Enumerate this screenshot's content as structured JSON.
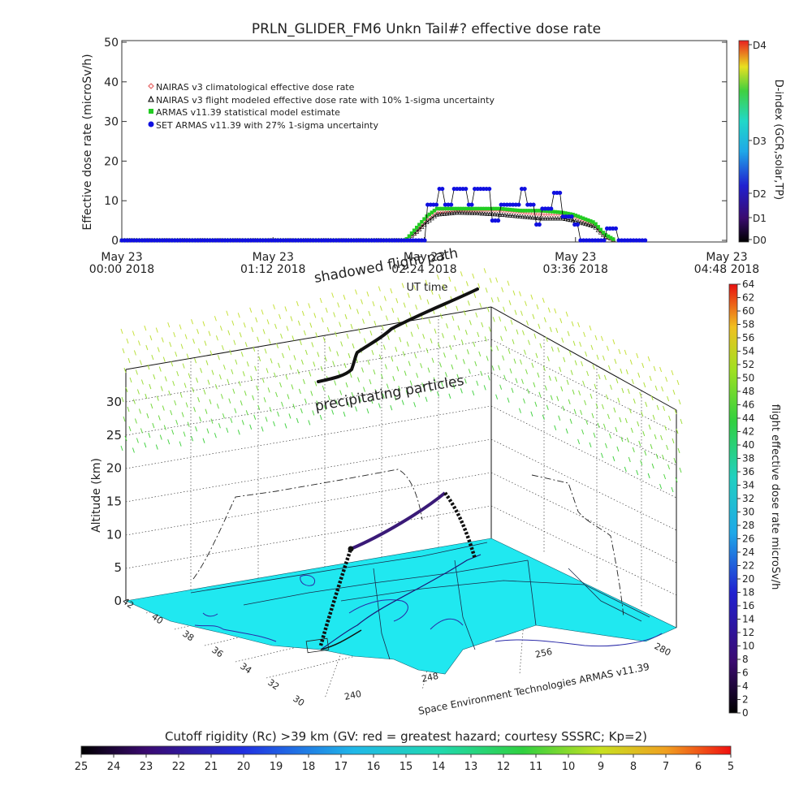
{
  "chart_data": [
    {
      "type": "line",
      "title": "PRLN_GLIDER_FM6 Unkn Tail#? effective dose rate",
      "xlabel": "UT time",
      "ylabel": "Effective dose rate (microSv/h)",
      "ylim": [
        0,
        50
      ],
      "yticks": [
        "0",
        "10",
        "20",
        "30",
        "40",
        "50"
      ],
      "xlim_minutes": [
        0,
        288
      ],
      "xticks": [
        {
          "minute": 0,
          "line1": "May 23",
          "line2": "00:00 2018"
        },
        {
          "minute": 72,
          "line1": "May 23",
          "line2": "01:12 2018"
        },
        {
          "minute": 144,
          "line1": "May 23",
          "line2": "02:24 2018"
        },
        {
          "minute": 216,
          "line1": "May 23",
          "line2": "03:36 2018"
        },
        {
          "minute": 288,
          "line1": "May 23",
          "line2": "04:48 2018"
        }
      ],
      "legend_position": "top-left",
      "series": [
        {
          "name": "NAIRAS v3 climatological effective dose rate",
          "color": "#e87070",
          "marker": "diamond",
          "x": [
            0,
            135,
            140,
            145,
            150,
            160,
            170,
            180,
            190,
            200,
            210,
            215,
            225,
            230,
            235
          ],
          "y": [
            0,
            0,
            2,
            5,
            7,
            7.5,
            7.5,
            7.5,
            7,
            6.5,
            6.5,
            6,
            4,
            1,
            0
          ]
        },
        {
          "name": "NAIRAS v3 flight modeled effective dose rate with 10% 1-sigma uncertainty",
          "color": "#000000",
          "marker": "triangle",
          "x": [
            0,
            135,
            140,
            145,
            150,
            160,
            170,
            180,
            190,
            200,
            210,
            215,
            225,
            230,
            235
          ],
          "y": [
            0,
            0,
            2,
            4.5,
            6.5,
            7,
            6.8,
            6.5,
            6,
            5.5,
            5.5,
            5,
            3.5,
            1,
            0
          ]
        },
        {
          "name": "ARMAS v11.39 statistical model estimate",
          "color": "#22cc22",
          "marker": "square",
          "x": [
            0,
            135,
            140,
            145,
            150,
            160,
            170,
            180,
            190,
            200,
            210,
            215,
            225,
            230,
            235
          ],
          "y": [
            0,
            0,
            3,
            6,
            8,
            8,
            8,
            8,
            7.5,
            7.5,
            7,
            6.5,
            4.5,
            1.5,
            0
          ]
        },
        {
          "name": "SET ARMAS v11.39 with 27% 1-sigma uncertainty",
          "color": "#1010e0",
          "marker": "circle",
          "x": [
            0,
            140,
            145,
            148,
            150,
            153,
            158,
            162,
            165,
            168,
            172,
            176,
            180,
            185,
            190,
            193,
            197,
            200,
            205,
            210,
            215,
            218,
            220,
            225,
            230,
            233,
            236,
            240,
            250
          ],
          "y": [
            0,
            0,
            9,
            9,
            13,
            9,
            13,
            13,
            9,
            13,
            13,
            5,
            9,
            9,
            13,
            9,
            4,
            8,
            12,
            6,
            4,
            0,
            0,
            0,
            3,
            3,
            0,
            0,
            0
          ]
        }
      ],
      "right_axis": {
        "label": "D-index (GCR,solar,TP)",
        "ticks": [
          "D0",
          "D1",
          "D2",
          "D3",
          "D4"
        ]
      }
    },
    {
      "type": "scatter",
      "subtype": "3d-trajectory",
      "zlabel": "Altitude (km)",
      "zlim": [
        0,
        30
      ],
      "zticks": [
        "0",
        "5",
        "10",
        "15",
        "20",
        "25",
        "30"
      ],
      "lat_ticks": [
        "30",
        "32",
        "34",
        "36",
        "38",
        "40",
        "42"
      ],
      "lon_ticks": [
        "240",
        "248",
        "256"
      ],
      "lon_right_label": "280",
      "annotations": [
        "shadowed flight path",
        "precipitating particles",
        "Space Environment Technologies ARMAS v11.39"
      ],
      "colorbar": {
        "label": "flight effective dose rate microSv/h",
        "ticks": [
          "0",
          "2",
          "4",
          "6",
          "8",
          "10",
          "12",
          "14",
          "16",
          "18",
          "20",
          "22",
          "24",
          "26",
          "28",
          "30",
          "32",
          "34",
          "36",
          "38",
          "40",
          "42",
          "44",
          "46",
          "48",
          "50",
          "52",
          "54",
          "56",
          "58",
          "60",
          "62",
          "64"
        ]
      },
      "bottom_colorbar": {
        "label": "Cutoff rigidity (Rc) >39 km (GV: red = greatest hazard; courtesy SSSRC; Kp=2)",
        "ticks": [
          "25",
          "24",
          "23",
          "22",
          "21",
          "20",
          "19",
          "18",
          "17",
          "16",
          "15",
          "14",
          "13",
          "12",
          "11",
          "10",
          "9",
          "8",
          "7",
          "6",
          "5"
        ]
      }
    }
  ]
}
